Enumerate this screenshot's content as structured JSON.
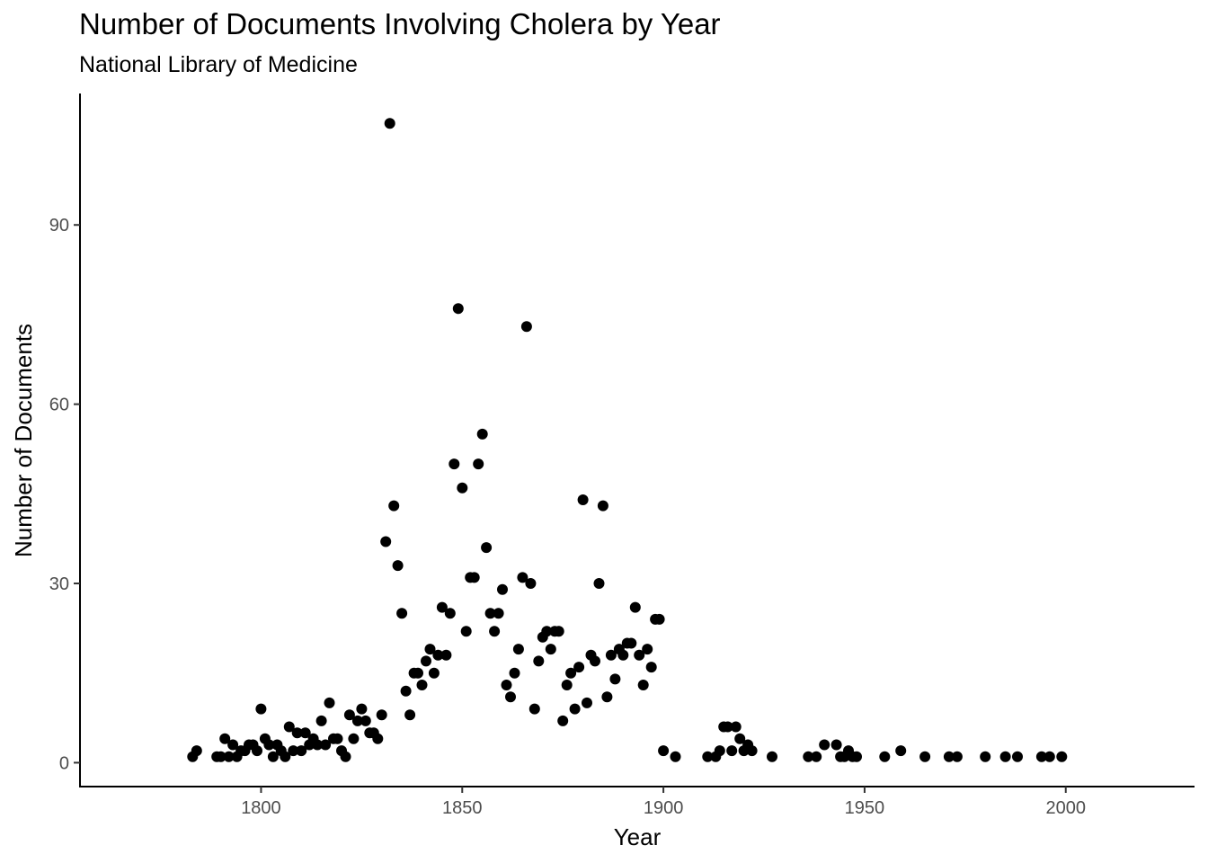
{
  "chart_data": {
    "type": "scatter",
    "title": "Number of Documents Involving Cholera by Year",
    "subtitle": "National Library of Medicine",
    "xlabel": "Year",
    "ylabel": "Number of Documents",
    "xlim": [
      1755,
      2032
    ],
    "ylim": [
      -4,
      112
    ],
    "xticks": [
      1800,
      1850,
      1900,
      1950,
      2000
    ],
    "yticks": [
      0,
      30,
      60,
      90
    ],
    "grid": false,
    "legend": "none",
    "point_color": "#000000",
    "points": [
      [
        1783,
        1
      ],
      [
        1784,
        2
      ],
      [
        1789,
        1
      ],
      [
        1790,
        1
      ],
      [
        1791,
        4
      ],
      [
        1792,
        1
      ],
      [
        1793,
        3
      ],
      [
        1794,
        1
      ],
      [
        1795,
        2
      ],
      [
        1796,
        2
      ],
      [
        1797,
        3
      ],
      [
        1798,
        3
      ],
      [
        1799,
        2
      ],
      [
        1800,
        9
      ],
      [
        1801,
        4
      ],
      [
        1802,
        3
      ],
      [
        1803,
        1
      ],
      [
        1804,
        3
      ],
      [
        1805,
        2
      ],
      [
        1806,
        1
      ],
      [
        1807,
        6
      ],
      [
        1808,
        2
      ],
      [
        1809,
        5
      ],
      [
        1810,
        2
      ],
      [
        1811,
        5
      ],
      [
        1812,
        3
      ],
      [
        1813,
        4
      ],
      [
        1814,
        3
      ],
      [
        1815,
        7
      ],
      [
        1816,
        3
      ],
      [
        1817,
        10
      ],
      [
        1818,
        4
      ],
      [
        1819,
        4
      ],
      [
        1820,
        2
      ],
      [
        1821,
        1
      ],
      [
        1822,
        8
      ],
      [
        1823,
        4
      ],
      [
        1824,
        7
      ],
      [
        1825,
        9
      ],
      [
        1826,
        7
      ],
      [
        1827,
        5
      ],
      [
        1828,
        5
      ],
      [
        1829,
        4
      ],
      [
        1830,
        8
      ],
      [
        1831,
        37
      ],
      [
        1832,
        107
      ],
      [
        1833,
        43
      ],
      [
        1834,
        33
      ],
      [
        1835,
        25
      ],
      [
        1836,
        12
      ],
      [
        1837,
        8
      ],
      [
        1838,
        15
      ],
      [
        1839,
        15
      ],
      [
        1840,
        13
      ],
      [
        1841,
        17
      ],
      [
        1842,
        19
      ],
      [
        1843,
        15
      ],
      [
        1844,
        18
      ],
      [
        1845,
        26
      ],
      [
        1846,
        18
      ],
      [
        1847,
        25
      ],
      [
        1848,
        50
      ],
      [
        1849,
        76
      ],
      [
        1850,
        46
      ],
      [
        1851,
        22
      ],
      [
        1852,
        31
      ],
      [
        1853,
        31
      ],
      [
        1854,
        50
      ],
      [
        1855,
        55
      ],
      [
        1856,
        36
      ],
      [
        1857,
        25
      ],
      [
        1858,
        22
      ],
      [
        1859,
        25
      ],
      [
        1860,
        29
      ],
      [
        1861,
        13
      ],
      [
        1862,
        11
      ],
      [
        1863,
        15
      ],
      [
        1864,
        19
      ],
      [
        1865,
        31
      ],
      [
        1866,
        73
      ],
      [
        1867,
        30
      ],
      [
        1868,
        9
      ],
      [
        1869,
        17
      ],
      [
        1870,
        21
      ],
      [
        1871,
        22
      ],
      [
        1872,
        19
      ],
      [
        1873,
        22
      ],
      [
        1874,
        22
      ],
      [
        1875,
        7
      ],
      [
        1876,
        13
      ],
      [
        1877,
        15
      ],
      [
        1878,
        9
      ],
      [
        1879,
        16
      ],
      [
        1880,
        44
      ],
      [
        1881,
        10
      ],
      [
        1882,
        18
      ],
      [
        1883,
        17
      ],
      [
        1884,
        30
      ],
      [
        1885,
        43
      ],
      [
        1886,
        11
      ],
      [
        1887,
        18
      ],
      [
        1888,
        14
      ],
      [
        1889,
        19
      ],
      [
        1890,
        18
      ],
      [
        1891,
        20
      ],
      [
        1892,
        20
      ],
      [
        1893,
        26
      ],
      [
        1894,
        18
      ],
      [
        1895,
        13
      ],
      [
        1896,
        19
      ],
      [
        1897,
        16
      ],
      [
        1898,
        24
      ],
      [
        1899,
        24
      ],
      [
        1900,
        2
      ],
      [
        1903,
        1
      ],
      [
        1911,
        1
      ],
      [
        1913,
        1
      ],
      [
        1914,
        2
      ],
      [
        1915,
        6
      ],
      [
        1916,
        6
      ],
      [
        1917,
        2
      ],
      [
        1918,
        6
      ],
      [
        1919,
        4
      ],
      [
        1920,
        2
      ],
      [
        1921,
        3
      ],
      [
        1922,
        2
      ],
      [
        1927,
        1
      ],
      [
        1936,
        1
      ],
      [
        1938,
        1
      ],
      [
        1940,
        3
      ],
      [
        1943,
        3
      ],
      [
        1944,
        1
      ],
      [
        1945,
        1
      ],
      [
        1946,
        2
      ],
      [
        1947,
        1
      ],
      [
        1948,
        1
      ],
      [
        1955,
        1
      ],
      [
        1959,
        2
      ],
      [
        1965,
        1
      ],
      [
        1971,
        1
      ],
      [
        1973,
        1
      ],
      [
        1980,
        1
      ],
      [
        1985,
        1
      ],
      [
        1988,
        1
      ],
      [
        1994,
        1
      ],
      [
        1996,
        1
      ],
      [
        1999,
        1
      ]
    ]
  }
}
